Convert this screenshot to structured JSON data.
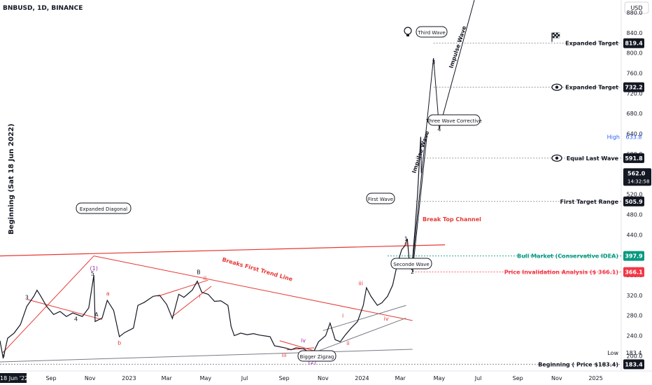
{
  "header": {
    "symbol": "BNBUSD, 1D, BINANCE"
  },
  "side_text": "Beginning (Sat 18 Jun 2022)",
  "axis": {
    "currency": "USD"
  },
  "chart_data": {
    "type": "line",
    "title": "BNBUSD, 1D, BINANCE",
    "x_range": [
      "2022-06-13",
      "2025-02-10"
    ],
    "y_range": [
      170,
      905
    ],
    "x_tick_labels": [
      {
        "t": "2022-06-18",
        "label": "18 Jun '22"
      },
      {
        "t": "2022-09-01",
        "label": "Sep"
      },
      {
        "t": "2022-11-01",
        "label": "Nov"
      },
      {
        "t": "2023-01-01",
        "label": "2023"
      },
      {
        "t": "2023-03-01",
        "label": "Mar"
      },
      {
        "t": "2023-05-01",
        "label": "May"
      },
      {
        "t": "2023-07-01",
        "label": "Jul"
      },
      {
        "t": "2023-09-01",
        "label": "Sep"
      },
      {
        "t": "2023-11-01",
        "label": "Nov"
      },
      {
        "t": "2024-01-01",
        "label": "2024"
      },
      {
        "t": "2024-03-01",
        "label": "Mar"
      },
      {
        "t": "2024-05-01",
        "label": "May"
      },
      {
        "t": "2024-07-01",
        "label": "Jul"
      },
      {
        "t": "2024-09-01",
        "label": "Sep"
      },
      {
        "t": "2024-11-01",
        "label": "Nov"
      },
      {
        "t": "2025-01-01",
        "label": "2025"
      }
    ],
    "y_tick_labels": [
      {
        "v": 880,
        "label": "880.0"
      },
      {
        "v": 840,
        "label": "840.0"
      },
      {
        "v": 800,
        "label": "800.0"
      },
      {
        "v": 760,
        "label": "760.0"
      },
      {
        "v": 720,
        "label": "720.0"
      },
      {
        "v": 680,
        "label": "680.0"
      },
      {
        "v": 640,
        "label": "640.0"
      },
      {
        "v": 600,
        "label": "600.0"
      },
      {
        "v": 560,
        "label": "560.0"
      },
      {
        "v": 520,
        "label": "520.0"
      },
      {
        "v": 480,
        "label": "480.0"
      },
      {
        "v": 440,
        "label": "440.0"
      },
      {
        "v": 400,
        "label": "400.0"
      },
      {
        "v": 360,
        "label": "360.0"
      },
      {
        "v": 320,
        "label": "320.0"
      },
      {
        "v": 280,
        "label": "280.0"
      },
      {
        "v": 240,
        "label": "240.0"
      },
      {
        "v": 200,
        "label": "200.0"
      }
    ],
    "series": [
      {
        "name": "",
        "color": "#131722",
        "points": [
          [
            "2022-06-13",
            230
          ],
          [
            "2022-06-18",
            195
          ],
          [
            "2022-06-25",
            235
          ],
          [
            "2022-07-05",
            245
          ],
          [
            "2022-07-15",
            262
          ],
          [
            "2022-07-25",
            298
          ],
          [
            "2022-08-05",
            318
          ],
          [
            "2022-08-10",
            330
          ],
          [
            "2022-08-15",
            320
          ],
          [
            "2022-08-25",
            298
          ],
          [
            "2022-09-05",
            282
          ],
          [
            "2022-09-15",
            288
          ],
          [
            "2022-09-25",
            278
          ],
          [
            "2022-10-05",
            285
          ],
          [
            "2022-10-20",
            278
          ],
          [
            "2022-10-30",
            295
          ],
          [
            "2022-11-07",
            360
          ],
          [
            "2022-11-09",
            268
          ],
          [
            "2022-11-20",
            275
          ],
          [
            "2022-11-28",
            310
          ],
          [
            "2022-12-08",
            290
          ],
          [
            "2022-12-17",
            238
          ],
          [
            "2022-12-25",
            246
          ],
          [
            "2023-01-08",
            255
          ],
          [
            "2023-01-15",
            300
          ],
          [
            "2023-01-25",
            306
          ],
          [
            "2023-02-08",
            318
          ],
          [
            "2023-02-18",
            320
          ],
          [
            "2023-03-01",
            302
          ],
          [
            "2023-03-10",
            274
          ],
          [
            "2023-03-20",
            322
          ],
          [
            "2023-03-28",
            316
          ],
          [
            "2023-04-10",
            330
          ],
          [
            "2023-04-18",
            348
          ],
          [
            "2023-04-25",
            326
          ],
          [
            "2023-05-05",
            322
          ],
          [
            "2023-05-15",
            308
          ],
          [
            "2023-05-25",
            309
          ],
          [
            "2023-06-05",
            300
          ],
          [
            "2023-06-10",
            258
          ],
          [
            "2023-06-15",
            240
          ],
          [
            "2023-06-25",
            245
          ],
          [
            "2023-07-05",
            242
          ],
          [
            "2023-07-15",
            244
          ],
          [
            "2023-07-25",
            241
          ],
          [
            "2023-08-10",
            238
          ],
          [
            "2023-08-17",
            220
          ],
          [
            "2023-08-25",
            218
          ],
          [
            "2023-09-05",
            215
          ],
          [
            "2023-09-12",
            212
          ],
          [
            "2023-09-20",
            216
          ],
          [
            "2023-10-01",
            214
          ],
          [
            "2023-10-10",
            208
          ],
          [
            "2023-10-18",
            210
          ],
          [
            "2023-10-25",
            228
          ],
          [
            "2023-11-05",
            240
          ],
          [
            "2023-11-12",
            265
          ],
          [
            "2023-11-20",
            232
          ],
          [
            "2023-11-28",
            228
          ],
          [
            "2023-12-05",
            240
          ],
          [
            "2023-12-15",
            255
          ],
          [
            "2023-12-25",
            268
          ],
          [
            "2024-01-03",
            300
          ],
          [
            "2024-01-08",
            335
          ],
          [
            "2024-01-15",
            318
          ],
          [
            "2024-01-25",
            300
          ],
          [
            "2024-02-01",
            305
          ],
          [
            "2024-02-10",
            318
          ],
          [
            "2024-02-18",
            340
          ],
          [
            "2024-02-25",
            380
          ],
          [
            "2024-03-03",
            410
          ],
          [
            "2024-03-08",
            418
          ],
          [
            "2024-03-12",
            432
          ],
          [
            "2024-03-15",
            388
          ],
          [
            "2024-03-19",
            372
          ],
          [
            "2024-03-24",
            450
          ],
          [
            "2024-03-28",
            520
          ],
          [
            "2024-03-31",
            590
          ],
          [
            "2024-04-02",
            633.8
          ],
          [
            "2024-04-03",
            562
          ]
        ]
      }
    ],
    "markers": {
      "high": {
        "label": "High",
        "value": "633.8"
      },
      "low": {
        "label": "Low",
        "value": "183.4"
      },
      "last_price": {
        "value": "562.0",
        "countdown": "14:32:58"
      }
    }
  },
  "targets": [
    {
      "label": "Expanded Target",
      "value": "819.4",
      "icon": "checkered-flag-icon"
    },
    {
      "label": "Expanded Target",
      "value": "732.2",
      "icon": "eye-icon"
    },
    {
      "label": "Equal Last Wave",
      "value": "591.8",
      "icon": "eye-icon"
    },
    {
      "label": "First Target Range",
      "value": "505.9",
      "icon": ""
    },
    {
      "label": "Bull Market (Conservative IDEA)",
      "value": "397.9",
      "color": "#089981"
    },
    {
      "label": "Price Invalidation Analysis ($ 366.1)",
      "value": "366.1",
      "color": "#f23645"
    },
    {
      "label": "Beginning ( Price $183.4)",
      "value": "183.4"
    }
  ],
  "annotations": {
    "callouts": [
      "Expanded Diagonal",
      "Third Wave",
      "Three Wave Corrective",
      "First Wave",
      "Seconde Wave",
      "Bigger Zigzag"
    ],
    "trend_texts": [
      "Break Top Channel",
      "Breaks First Trend Line",
      "Impulse Wave",
      "Impulse Wave"
    ],
    "wave_labels": [
      {
        "t": "2022-07-25",
        "v": 312,
        "text": "3",
        "color": "#131722"
      },
      {
        "t": "2022-06-19",
        "v": 200,
        "text": "2",
        "color": "#131722"
      },
      {
        "t": "2022-10-10",
        "v": 269,
        "text": "4",
        "color": "#131722"
      },
      {
        "t": "2022-11-05",
        "v": 359,
        "text": "5",
        "color": "#131722"
      },
      {
        "t": "2022-11-07",
        "v": 370,
        "text": "(1)",
        "color": "#9c27b0"
      },
      {
        "t": "2022-11-11",
        "v": 278,
        "text": "A",
        "color": "#131722"
      },
      {
        "t": "2022-11-29",
        "v": 320,
        "text": "a",
        "color": "#e53935"
      },
      {
        "t": "2022-12-17",
        "v": 222,
        "text": "b",
        "color": "#e53935"
      },
      {
        "t": "2023-04-20",
        "v": 362,
        "text": "B",
        "color": "#131722"
      },
      {
        "t": "2023-04-30",
        "v": 350,
        "text": "ii",
        "color": "#e53935"
      },
      {
        "t": "2023-04-22",
        "v": 315,
        "text": "i",
        "color": "#e53935"
      },
      {
        "t": "2023-09-01",
        "v": 198,
        "text": "iii",
        "color": "#e53935"
      },
      {
        "t": "2023-10-01",
        "v": 227,
        "text": "iv",
        "color": "#9c27b0"
      },
      {
        "t": "2023-10-17",
        "v": 201,
        "text": "v",
        "color": "#9c27b0"
      },
      {
        "t": "2023-10-15",
        "v": 193,
        "text": "C",
        "color": "#131722"
      },
      {
        "t": "2023-10-15",
        "v": 184,
        "text": "(2)",
        "color": "#9c27b0"
      },
      {
        "t": "2023-12-02",
        "v": 276,
        "text": "i",
        "color": "#e53935"
      },
      {
        "t": "2023-12-10",
        "v": 221,
        "text": "ii",
        "color": "#e53935"
      },
      {
        "t": "2023-12-30",
        "v": 340,
        "text": "iii",
        "color": "#e53935"
      },
      {
        "t": "2024-02-08",
        "v": 270,
        "text": "iv",
        "color": "#e53935"
      },
      {
        "t": "2024-03-10",
        "v": 428,
        "text": "1",
        "color": "#131722"
      },
      {
        "t": "2024-03-10",
        "v": 418,
        "text": "v",
        "color": "#e53935"
      },
      {
        "t": "2024-03-20",
        "v": 363,
        "text": "2",
        "color": "#131722"
      },
      {
        "t": "2024-04-22",
        "v": 778,
        "text": "3",
        "color": "#131722"
      },
      {
        "t": "2024-05-01",
        "v": 645,
        "text": "4",
        "color": "#131722"
      }
    ]
  }
}
